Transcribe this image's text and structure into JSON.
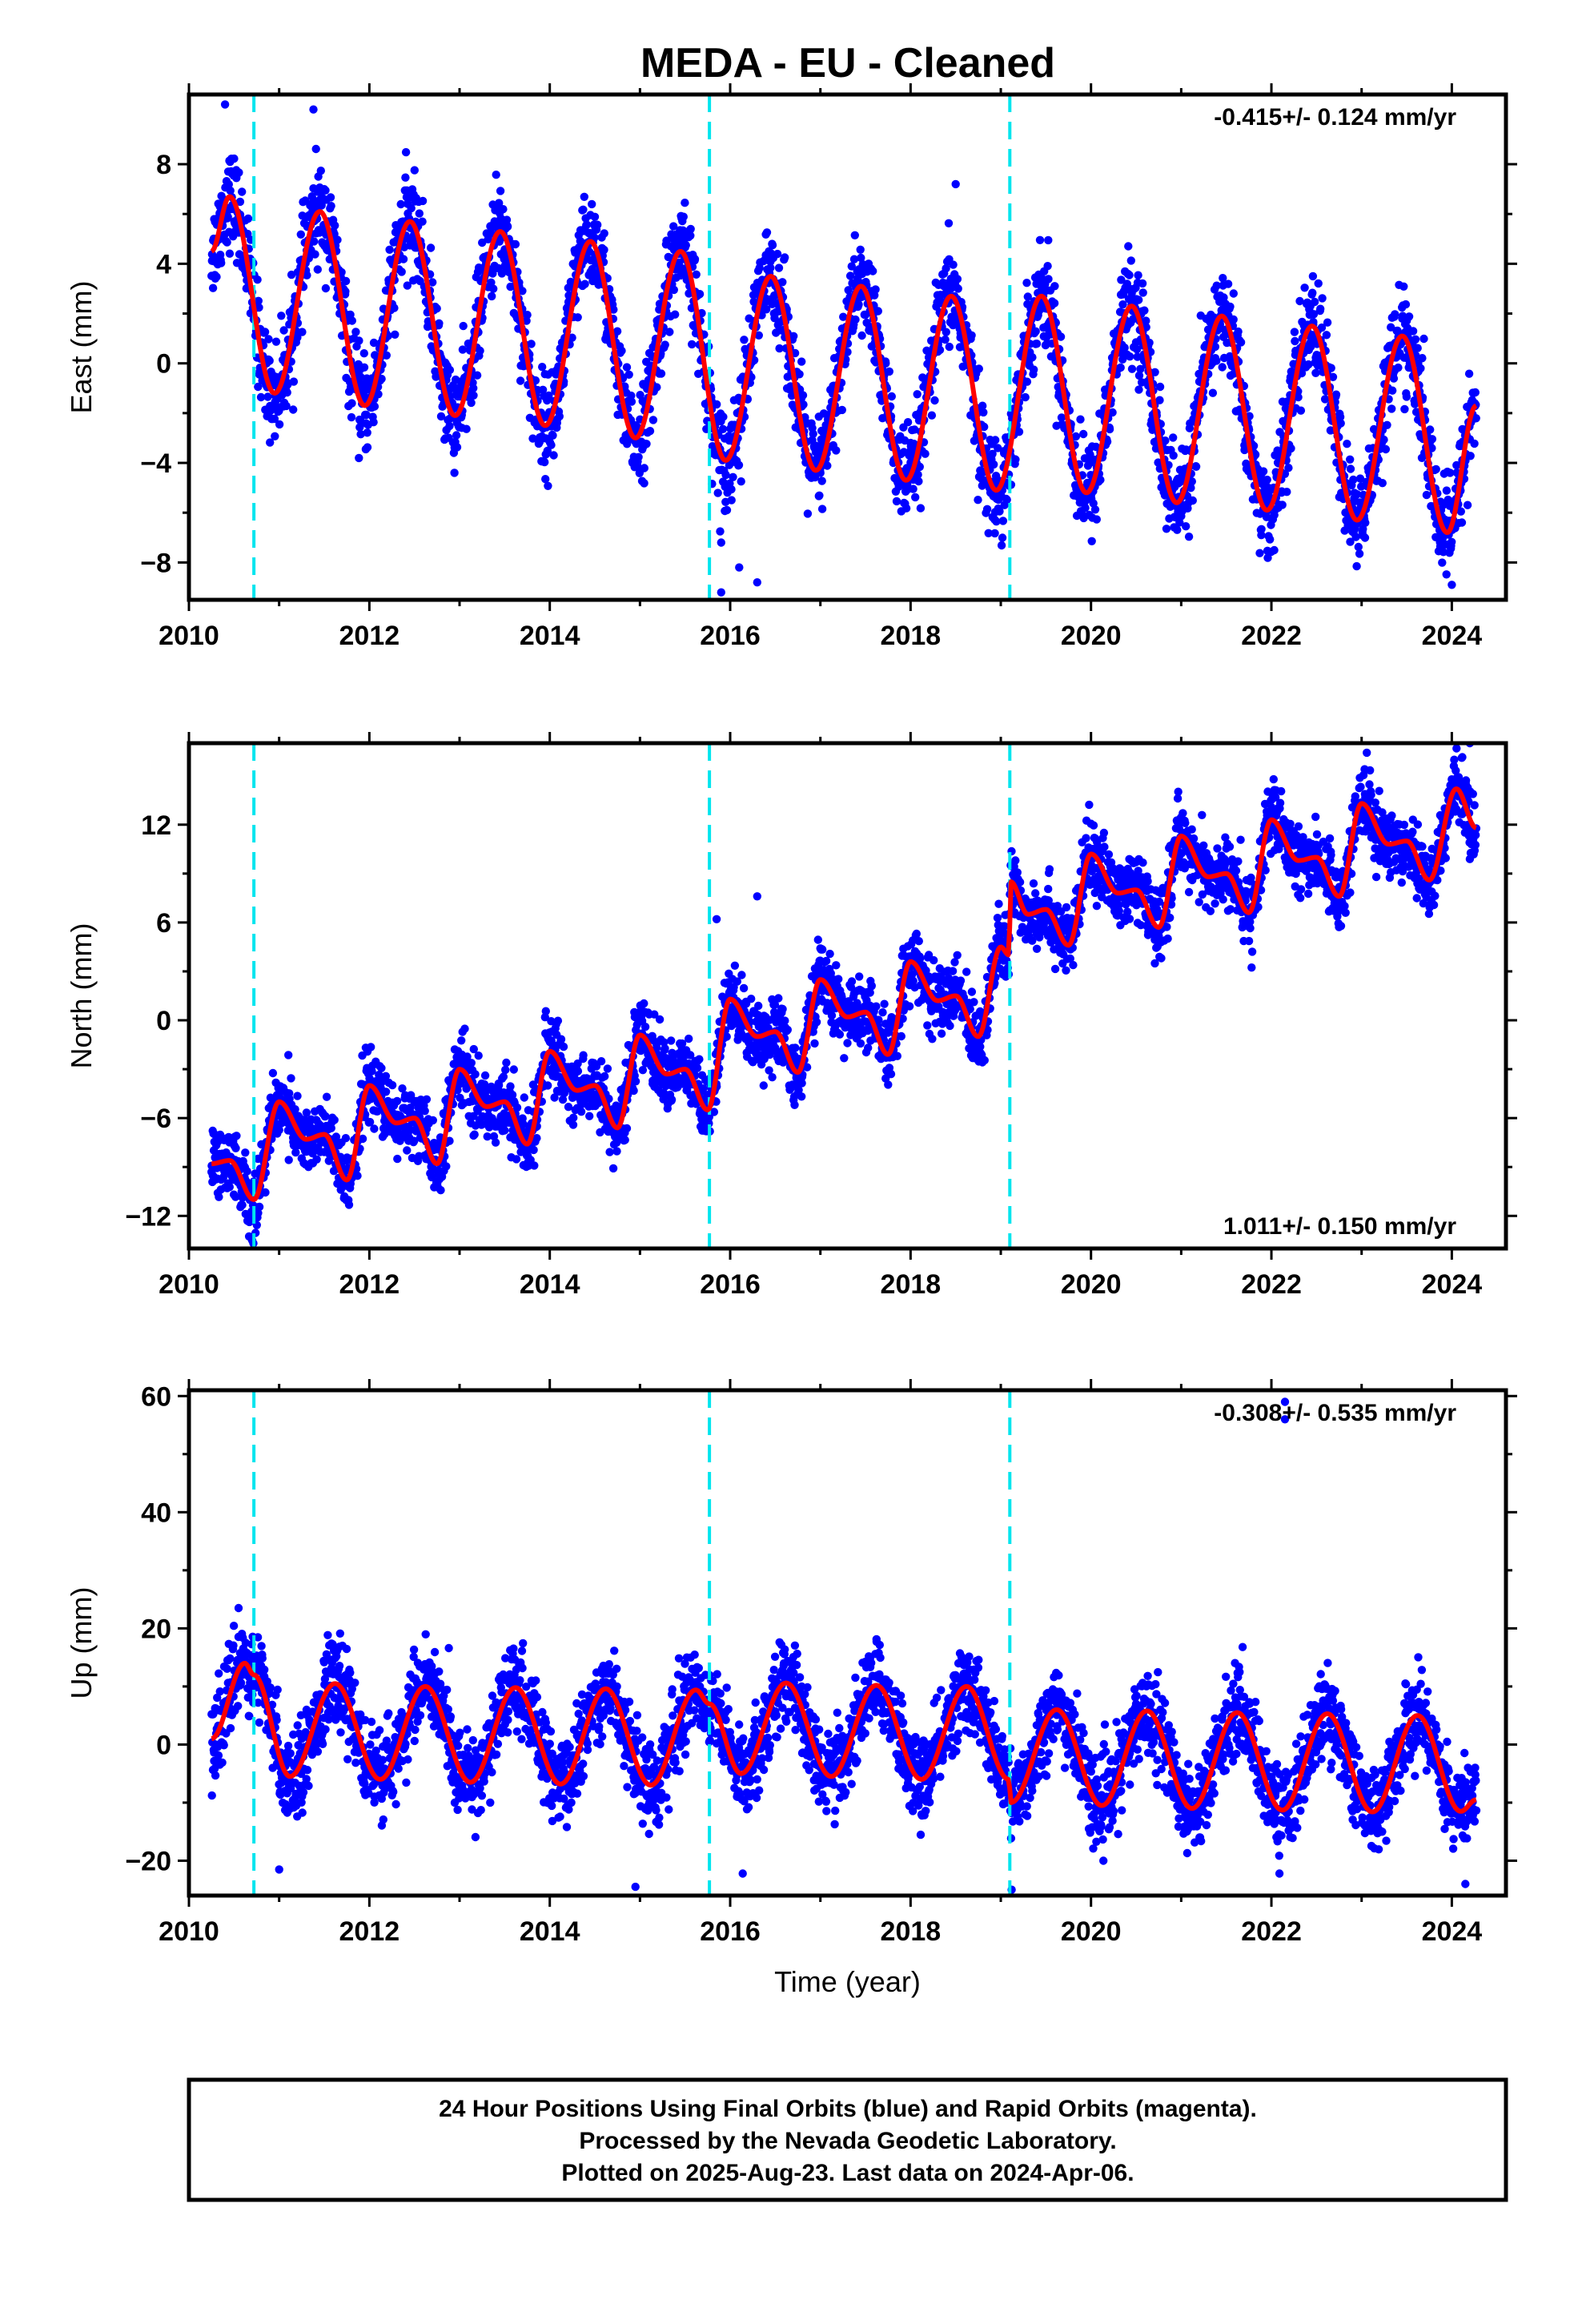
{
  "title": "MEDA  - EU - Cleaned",
  "colors": {
    "points": "#0000ff",
    "fit": "#ff0000",
    "steps": "#00e5ee",
    "frame": "#000000"
  },
  "chart_data": [
    {
      "type": "scatter",
      "id": "east",
      "ylabel": "East (mm)",
      "xlabel": "",
      "xlim": [
        2010,
        2024.6
      ],
      "ylim": [
        -9.5,
        10.8
      ],
      "yticks": [
        -8,
        -4,
        0,
        4,
        8
      ],
      "xticks": [
        2010,
        2012,
        2014,
        2016,
        2018,
        2020,
        2022,
        2024
      ],
      "annotation": "-0.415+/- 0.124 mm/yr",
      "annotation_position": "top-right",
      "steps": [
        2010.72,
        2015.77,
        2019.1
      ],
      "start_year": 2010.25,
      "end_year": 2024.27,
      "series": [
        {
          "label": "fit",
          "values": [
            {
              "x": 2010.25,
              "y": 4.5
            },
            {
              "x": 2010.45,
              "y": 6.7
            },
            {
              "x": 2010.95,
              "y": -1.2
            },
            {
              "x": 2011.45,
              "y": 6.1
            },
            {
              "x": 2011.95,
              "y": -1.7
            },
            {
              "x": 2012.45,
              "y": 5.7
            },
            {
              "x": 2012.95,
              "y": -2.1
            },
            {
              "x": 2013.45,
              "y": 5.3
            },
            {
              "x": 2013.95,
              "y": -2.5
            },
            {
              "x": 2014.45,
              "y": 4.9
            },
            {
              "x": 2014.95,
              "y": -3.0
            },
            {
              "x": 2015.45,
              "y": 4.5
            },
            {
              "x": 2015.95,
              "y": -3.9
            },
            {
              "x": 2016.45,
              "y": 3.5
            },
            {
              "x": 2016.95,
              "y": -4.3
            },
            {
              "x": 2017.45,
              "y": 3.1
            },
            {
              "x": 2017.95,
              "y": -4.7
            },
            {
              "x": 2018.45,
              "y": 2.7
            },
            {
              "x": 2018.95,
              "y": -5.1
            },
            {
              "x": 2019.45,
              "y": 2.7
            },
            {
              "x": 2019.95,
              "y": -5.2
            },
            {
              "x": 2020.45,
              "y": 2.3
            },
            {
              "x": 2020.95,
              "y": -5.6
            },
            {
              "x": 2021.45,
              "y": 1.9
            },
            {
              "x": 2021.95,
              "y": -5.9
            },
            {
              "x": 2022.45,
              "y": 1.5
            },
            {
              "x": 2022.95,
              "y": -6.3
            },
            {
              "x": 2023.45,
              "y": 1.1
            },
            {
              "x": 2023.95,
              "y": -6.8
            },
            {
              "x": 2024.27,
              "y": -1.7
            }
          ]
        }
      ],
      "outliers": [
        {
          "x": 2010.4,
          "y": 10.4
        },
        {
          "x": 2011.38,
          "y": 10.2
        },
        {
          "x": 2015.9,
          "y": -7.2
        },
        {
          "x": 2015.9,
          "y": -9.2
        },
        {
          "x": 2016.3,
          "y": -8.8
        },
        {
          "x": 2016.1,
          "y": -8.2
        },
        {
          "x": 2018.5,
          "y": 7.2
        },
        {
          "x": 2024.0,
          "y": -8.9
        }
      ]
    },
    {
      "type": "scatter",
      "id": "north",
      "ylabel": "North (mm)",
      "xlabel": "",
      "xlim": [
        2010,
        2024.6
      ],
      "ylim": [
        -14,
        17
      ],
      "yticks": [
        -12,
        -6,
        0,
        6,
        12
      ],
      "xticks": [
        2010,
        2012,
        2014,
        2016,
        2018,
        2020,
        2022,
        2024
      ],
      "annotation": "1.011+/- 0.150 mm/yr",
      "annotation_position": "bottom-right",
      "steps": [
        2010.72,
        2015.77,
        2019.1
      ],
      "start_year": 2010.25,
      "end_year": 2024.27,
      "series": [
        {
          "label": "fit",
          "values": [
            {
              "x": 2010.25,
              "y": -8.8
            },
            {
              "x": 2010.45,
              "y": -8.6
            },
            {
              "x": 2010.72,
              "y": -11.0
            },
            {
              "x": 2011.0,
              "y": -5.0
            },
            {
              "x": 2011.3,
              "y": -7.3
            },
            {
              "x": 2011.5,
              "y": -7.0
            },
            {
              "x": 2011.75,
              "y": -9.8
            },
            {
              "x": 2012.0,
              "y": -4.0
            },
            {
              "x": 2012.3,
              "y": -6.3
            },
            {
              "x": 2012.5,
              "y": -6.0
            },
            {
              "x": 2012.75,
              "y": -8.8
            },
            {
              "x": 2013.0,
              "y": -3.0
            },
            {
              "x": 2013.3,
              "y": -5.3
            },
            {
              "x": 2013.5,
              "y": -5.0
            },
            {
              "x": 2013.75,
              "y": -7.6
            },
            {
              "x": 2014.0,
              "y": -1.9
            },
            {
              "x": 2014.3,
              "y": -4.3
            },
            {
              "x": 2014.5,
              "y": -4.0
            },
            {
              "x": 2014.75,
              "y": -6.6
            },
            {
              "x": 2015.0,
              "y": -0.9
            },
            {
              "x": 2015.3,
              "y": -3.3
            },
            {
              "x": 2015.5,
              "y": -3.0
            },
            {
              "x": 2015.75,
              "y": -5.5
            },
            {
              "x": 2016.0,
              "y": 1.3
            },
            {
              "x": 2016.3,
              "y": -1.0
            },
            {
              "x": 2016.5,
              "y": -0.7
            },
            {
              "x": 2016.75,
              "y": -3.2
            },
            {
              "x": 2017.0,
              "y": 2.5
            },
            {
              "x": 2017.3,
              "y": 0.2
            },
            {
              "x": 2017.5,
              "y": 0.5
            },
            {
              "x": 2017.75,
              "y": -2.1
            },
            {
              "x": 2018.0,
              "y": 3.6
            },
            {
              "x": 2018.3,
              "y": 1.2
            },
            {
              "x": 2018.5,
              "y": 1.5
            },
            {
              "x": 2018.75,
              "y": -1.0
            },
            {
              "x": 2019.0,
              "y": 4.5
            },
            {
              "x": 2019.09,
              "y": 4.0
            },
            {
              "x": 2019.11,
              "y": 8.5
            },
            {
              "x": 2019.3,
              "y": 6.5
            },
            {
              "x": 2019.5,
              "y": 6.8
            },
            {
              "x": 2019.75,
              "y": 4.6
            },
            {
              "x": 2020.0,
              "y": 10.2
            },
            {
              "x": 2020.3,
              "y": 7.8
            },
            {
              "x": 2020.5,
              "y": 8.0
            },
            {
              "x": 2020.75,
              "y": 5.7
            },
            {
              "x": 2021.0,
              "y": 11.3
            },
            {
              "x": 2021.3,
              "y": 8.8
            },
            {
              "x": 2021.5,
              "y": 9.0
            },
            {
              "x": 2021.75,
              "y": 6.6
            },
            {
              "x": 2022.0,
              "y": 12.3
            },
            {
              "x": 2022.3,
              "y": 9.8
            },
            {
              "x": 2022.5,
              "y": 10.0
            },
            {
              "x": 2022.75,
              "y": 7.6
            },
            {
              "x": 2023.0,
              "y": 13.3
            },
            {
              "x": 2023.3,
              "y": 10.8
            },
            {
              "x": 2023.5,
              "y": 11.0
            },
            {
              "x": 2023.75,
              "y": 8.6
            },
            {
              "x": 2024.05,
              "y": 14.2
            },
            {
              "x": 2024.27,
              "y": 11.8
            }
          ]
        }
      ],
      "outliers": [
        {
          "x": 2015.85,
          "y": 6.2
        },
        {
          "x": 2016.3,
          "y": 7.6
        },
        {
          "x": 2024.2,
          "y": 17.0
        },
        {
          "x": 2010.7,
          "y": -13.5
        }
      ]
    },
    {
      "type": "scatter",
      "id": "up",
      "ylabel": "Up (mm)",
      "xlabel": "Time (year)",
      "xlim": [
        2010,
        2024.6
      ],
      "ylim": [
        -26,
        61
      ],
      "yticks": [
        -20,
        0,
        20,
        40,
        60
      ],
      "xticks": [
        2010,
        2012,
        2014,
        2016,
        2018,
        2020,
        2022,
        2024
      ],
      "annotation": "-0.308+/- 0.535 mm/yr",
      "annotation_position": "top-right",
      "steps": [
        2010.72,
        2015.77,
        2019.1
      ],
      "start_year": 2010.25,
      "end_year": 2024.27,
      "series": [
        {
          "label": "fit",
          "values": [
            {
              "x": 2010.25,
              "y": 1.0
            },
            {
              "x": 2010.62,
              "y": 14.0
            },
            {
              "x": 2010.72,
              "y": 12.0
            },
            {
              "x": 2011.12,
              "y": -5.5
            },
            {
              "x": 2011.62,
              "y": 10.5
            },
            {
              "x": 2012.12,
              "y": -6.0
            },
            {
              "x": 2012.62,
              "y": 10.0
            },
            {
              "x": 2013.12,
              "y": -6.5
            },
            {
              "x": 2013.62,
              "y": 9.8
            },
            {
              "x": 2014.12,
              "y": -6.8
            },
            {
              "x": 2014.62,
              "y": 9.6
            },
            {
              "x": 2015.12,
              "y": -7.0
            },
            {
              "x": 2015.62,
              "y": 9.4
            },
            {
              "x": 2015.77,
              "y": 7.0
            },
            {
              "x": 2016.12,
              "y": -5.0
            },
            {
              "x": 2016.62,
              "y": 10.6
            },
            {
              "x": 2017.12,
              "y": -5.5
            },
            {
              "x": 2017.62,
              "y": 10.2
            },
            {
              "x": 2018.12,
              "y": -6.0
            },
            {
              "x": 2018.62,
              "y": 10.0
            },
            {
              "x": 2019.09,
              "y": -6.0
            },
            {
              "x": 2019.11,
              "y": -10.0
            },
            {
              "x": 2019.62,
              "y": 6.0
            },
            {
              "x": 2020.12,
              "y": -10.5
            },
            {
              "x": 2020.62,
              "y": 5.8
            },
            {
              "x": 2021.12,
              "y": -11.0
            },
            {
              "x": 2021.62,
              "y": 5.5
            },
            {
              "x": 2022.12,
              "y": -11.3
            },
            {
              "x": 2022.62,
              "y": 5.3
            },
            {
              "x": 2023.12,
              "y": -11.6
            },
            {
              "x": 2023.62,
              "y": 5.0
            },
            {
              "x": 2024.1,
              "y": -11.5
            },
            {
              "x": 2024.27,
              "y": -9.5
            }
          ]
        }
      ],
      "outliers": [
        {
          "x": 2022.15,
          "y": 59.0
        },
        {
          "x": 2022.15,
          "y": 56.0
        },
        {
          "x": 2011.0,
          "y": -21.5
        },
        {
          "x": 2014.95,
          "y": -24.5
        },
        {
          "x": 2019.12,
          "y": -25.0
        },
        {
          "x": 2024.15,
          "y": -24.0
        },
        {
          "x": 2010.55,
          "y": 23.5
        }
      ]
    }
  ],
  "footer": {
    "line1": "24 Hour Positions Using Final Orbits (blue) and Rapid Orbits (magenta).",
    "line2": "Processed by the Nevada Geodetic Laboratory.",
    "line3": "Plotted on 2025-Aug-23. Last data on 2024-Apr-06."
  }
}
